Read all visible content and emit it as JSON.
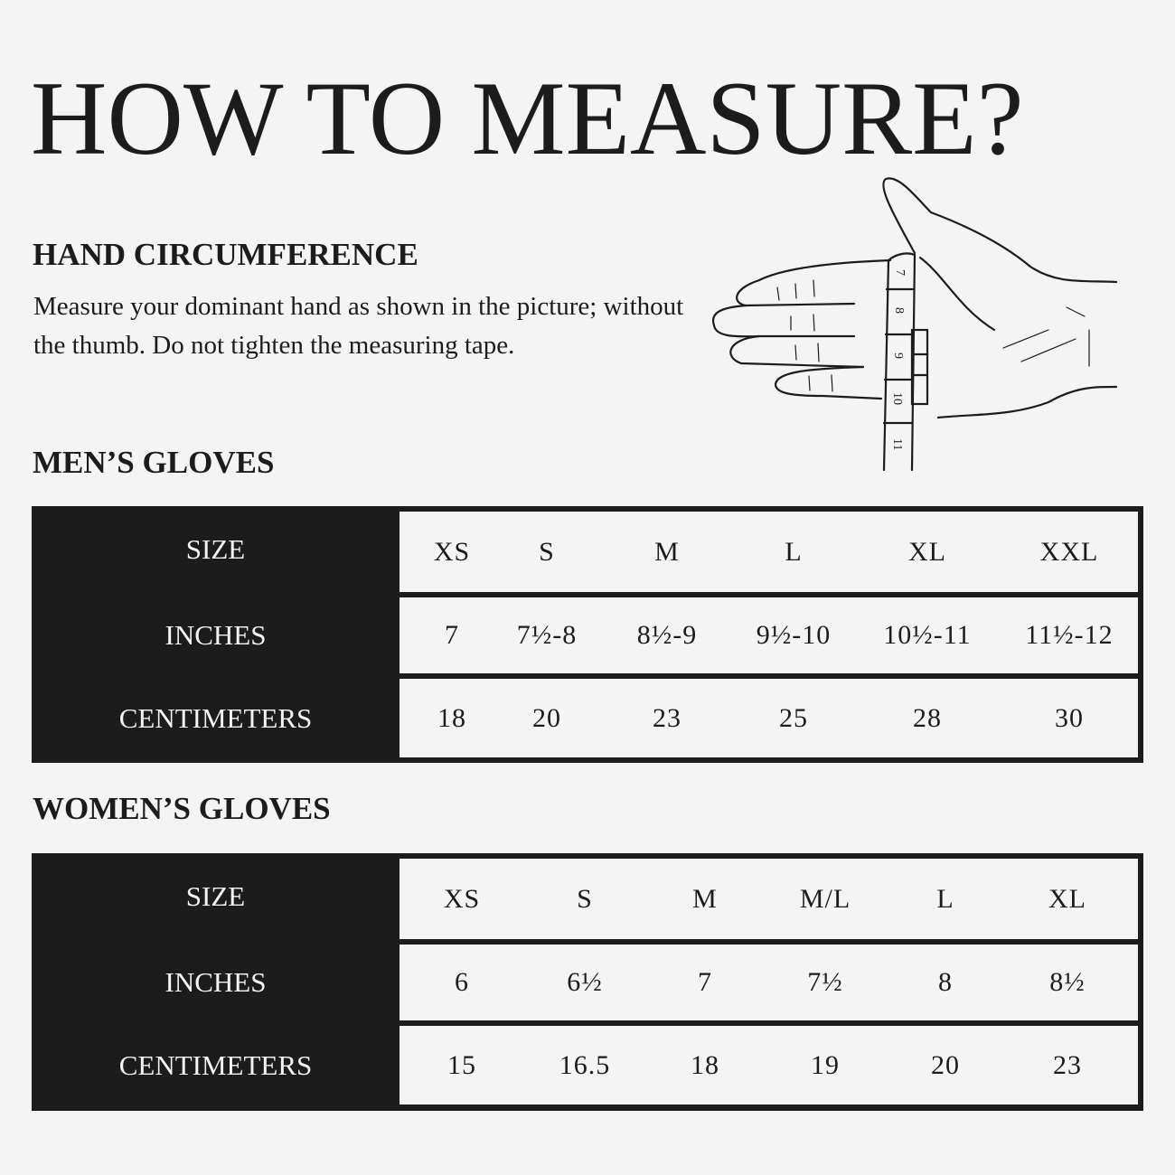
{
  "title": "HOW TO MEASURE?",
  "hand_circumference": {
    "heading": "HAND CIRCUMFERENCE",
    "text": "Measure your dominant hand as shown in the picture; without the thumb. Do not tighten the measuring tape."
  },
  "illustration": {
    "icon": "hand-with-measuring-tape",
    "tape_marks": [
      "7",
      "8",
      "9",
      "10",
      "11"
    ]
  },
  "mens": {
    "heading": "MEN’S GLOVES",
    "rows": [
      {
        "label": "SIZE",
        "values": [
          "XS",
          "S",
          "M",
          "L",
          "XL",
          "XXL"
        ]
      },
      {
        "label": "INCHES",
        "values": [
          "7",
          "7½-8",
          "8½-9",
          "9½-10",
          "10½-11",
          "11½-12"
        ]
      },
      {
        "label": "CENTIMETERS",
        "values": [
          "18",
          "20",
          "23",
          "25",
          "28",
          "30"
        ]
      }
    ]
  },
  "womens": {
    "heading": "WOMEN’S GLOVES",
    "rows": [
      {
        "label": "SIZE",
        "values": [
          "XS",
          "S",
          "M",
          "M/L",
          "L",
          "XL"
        ]
      },
      {
        "label": "INCHES",
        "values": [
          "6",
          "6½",
          "7",
          "7½",
          "8",
          "8½"
        ]
      },
      {
        "label": "CENTIMETERS",
        "values": [
          "15",
          "16.5",
          "18",
          "19",
          "20",
          "23"
        ]
      }
    ]
  },
  "colors": {
    "background": "#f4f4f4",
    "ink": "#1c1c1c"
  }
}
